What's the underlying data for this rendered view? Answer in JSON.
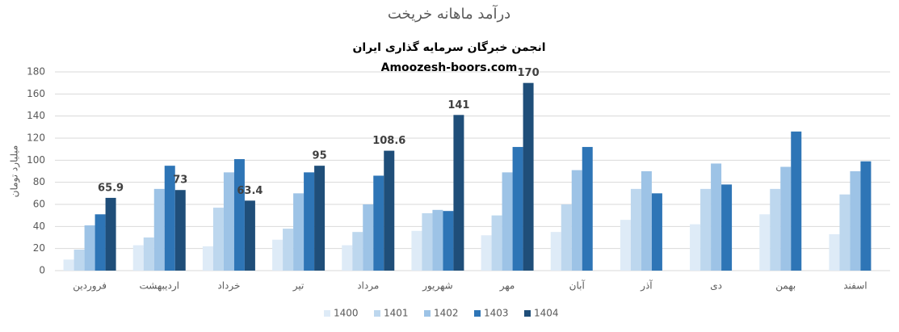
{
  "chart_data": {
    "type": "bar",
    "title": "درآمد ماهانه خریخت",
    "annotations": [
      "انجمن خبرگان سرمایه گذاری ایران",
      "Amoozesh-boors.com"
    ],
    "y_label": "میلیارد تومان",
    "categories": [
      "فروردین",
      "اردیبهشت",
      "خرداد",
      "تیر",
      "مرداد",
      "شهریور",
      "مهر",
      "آبان",
      "آذر",
      "دی",
      "بهمن",
      "اسفند"
    ],
    "series": [
      {
        "name": "1400",
        "color": "#deebf7",
        "values": [
          10,
          23,
          22,
          28,
          23,
          36,
          32,
          35,
          46,
          42,
          51,
          33
        ]
      },
      {
        "name": "1401",
        "color": "#bdd7ee",
        "values": [
          19,
          30,
          57,
          38,
          35,
          52,
          50,
          60,
          74,
          74,
          74,
          69
        ]
      },
      {
        "name": "1402",
        "color": "#9dc3e6",
        "values": [
          41,
          74,
          89,
          70,
          60,
          55,
          89,
          91,
          90,
          97,
          94,
          90
        ]
      },
      {
        "name": "1403",
        "color": "#2e75b6",
        "values": [
          51,
          95,
          101,
          89,
          86,
          54,
          112,
          112,
          70,
          78,
          126,
          99
        ]
      },
      {
        "name": "1404",
        "color": "#1f4e79",
        "values": [
          65.9,
          73,
          63.4,
          95,
          108.6,
          141,
          170,
          null,
          null,
          null,
          null,
          null
        ],
        "data_labels": true
      }
    ],
    "ylim": [
      0,
      180
    ],
    "yticks": [
      0,
      20,
      40,
      60,
      80,
      100,
      120,
      140,
      160,
      180
    ],
    "grid": true,
    "legend": "bottom"
  }
}
